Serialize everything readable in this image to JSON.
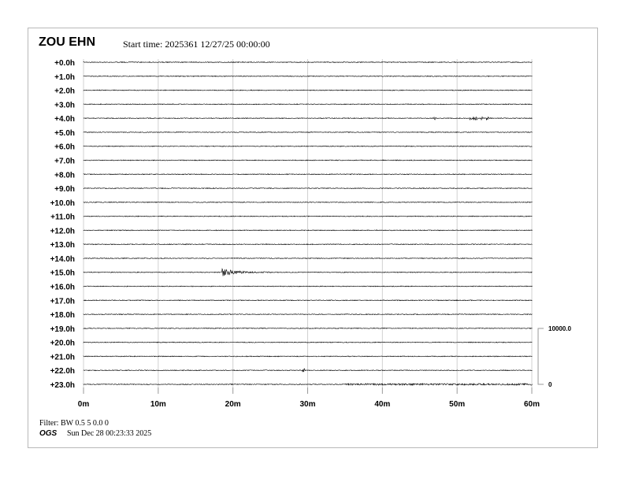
{
  "header": {
    "station": "ZOU EHN",
    "start_time": "Start time: 2025361 12/27/25 00:00:00"
  },
  "footer": {
    "filter": "Filter: BW 0.5 5 0.0 0",
    "agency": "OGS",
    "generated": "Sun Dec 28 00:23:33 2025"
  },
  "chart_data": {
    "type": "line",
    "title": "ZOU EHN",
    "xlabel": "",
    "ylabel": "",
    "xlim": [
      0,
      60
    ],
    "x_tick_labels": [
      "0m",
      "10m",
      "20m",
      "30m",
      "40m",
      "50m",
      "60m"
    ],
    "x_ticks": [
      0,
      10,
      20,
      30,
      40,
      50,
      60
    ],
    "row_labels": [
      "+0.0h",
      "+1.0h",
      "+2.0h",
      "+3.0h",
      "+4.0h",
      "+5.0h",
      "+6.0h",
      "+7.0h",
      "+8.0h",
      "+9.0h",
      "+10.0h",
      "+11.0h",
      "+12.0h",
      "+13.0h",
      "+14.0h",
      "+15.0h",
      "+16.0h",
      "+17.0h",
      "+18.0h",
      "+19.0h",
      "+20.0h",
      "+21.0h",
      "+22.0h",
      "+23.0h"
    ],
    "grid": true,
    "scale_labels": {
      "top": "10000.0",
      "bottom": "0"
    },
    "trace_color": "#000000",
    "grid_color": "#d0d0d0",
    "events": [
      {
        "row": 4,
        "minutes": [
          47.0,
          51.8,
          52.1,
          52.5,
          53.3,
          54.0
        ],
        "amplitude": "small spikes"
      },
      {
        "row": 15,
        "onset_minute": 18.5,
        "coda_end_minute": 25.0,
        "amplitude": "largest"
      },
      {
        "row": 22,
        "minutes": [
          29.4
        ],
        "amplitude": "single spike"
      },
      {
        "row": 23,
        "noise_from_minute": 35,
        "noise_to_minute": 60
      }
    ]
  }
}
